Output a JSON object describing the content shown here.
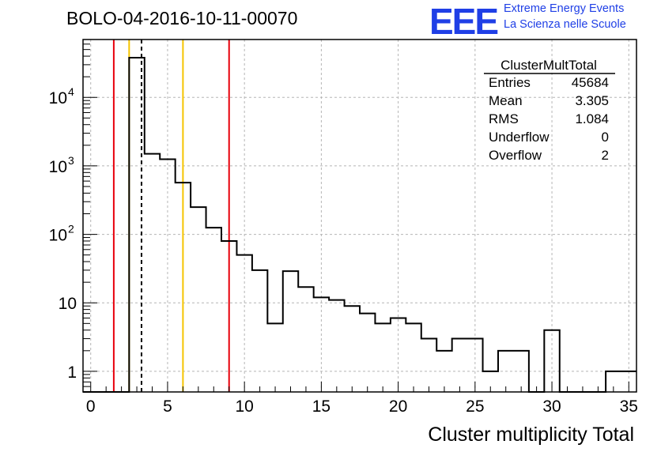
{
  "title": "BOLO-04-2016-10-11-00070",
  "logo": {
    "mark": "EEE",
    "line1": "Extreme Energy Events",
    "line2": "La Scienza nelle Scuole",
    "color": "#1f3fe6"
  },
  "stats": {
    "name": "ClusterMultTotal",
    "rows": [
      {
        "label": "Entries",
        "value": "45684"
      },
      {
        "label": "Mean",
        "value": "3.305"
      },
      {
        "label": "RMS",
        "value": "1.084"
      },
      {
        "label": "Underflow",
        "value": "0"
      },
      {
        "label": "Overflow",
        "value": "2"
      }
    ]
  },
  "chart_data": {
    "type": "bar",
    "title": "BOLO-04-2016-10-11-00070",
    "xlabel": "Cluster multiplicity Total",
    "ylabel": "",
    "xlim": [
      -0.5,
      35.5
    ],
    "ylim": [
      0.5,
      70000
    ],
    "yscale": "log",
    "grid": true,
    "x_ticks": [
      0,
      5,
      10,
      15,
      20,
      25,
      30,
      35
    ],
    "y_ticks": [
      {
        "value": 1,
        "label": "1"
      },
      {
        "value": 10,
        "label": "10"
      },
      {
        "value": 100,
        "label": "10",
        "exp": "2"
      },
      {
        "value": 1000,
        "label": "10",
        "exp": "3"
      },
      {
        "value": 10000,
        "label": "10",
        "exp": "4"
      }
    ],
    "bin_width": 1,
    "bin_edges_start": -0.5,
    "counts": [
      0,
      0,
      0,
      38000,
      1500,
      1250,
      570,
      250,
      125,
      80,
      50,
      30,
      5,
      29,
      17,
      12,
      11,
      9,
      7,
      5,
      6,
      5,
      3,
      2,
      3,
      3,
      1,
      2,
      2,
      0,
      4,
      0,
      0,
      0,
      1,
      1
    ],
    "lines": [
      {
        "x": 1.5,
        "color": "#e8000b",
        "style": "solid"
      },
      {
        "x": 2.5,
        "color": "#f5c400",
        "style": "solid"
      },
      {
        "x": 3.305,
        "color": "#000000",
        "style": "dashed"
      },
      {
        "x": 6.0,
        "color": "#f5c400",
        "style": "solid"
      },
      {
        "x": 9.0,
        "color": "#e8000b",
        "style": "solid"
      }
    ]
  }
}
